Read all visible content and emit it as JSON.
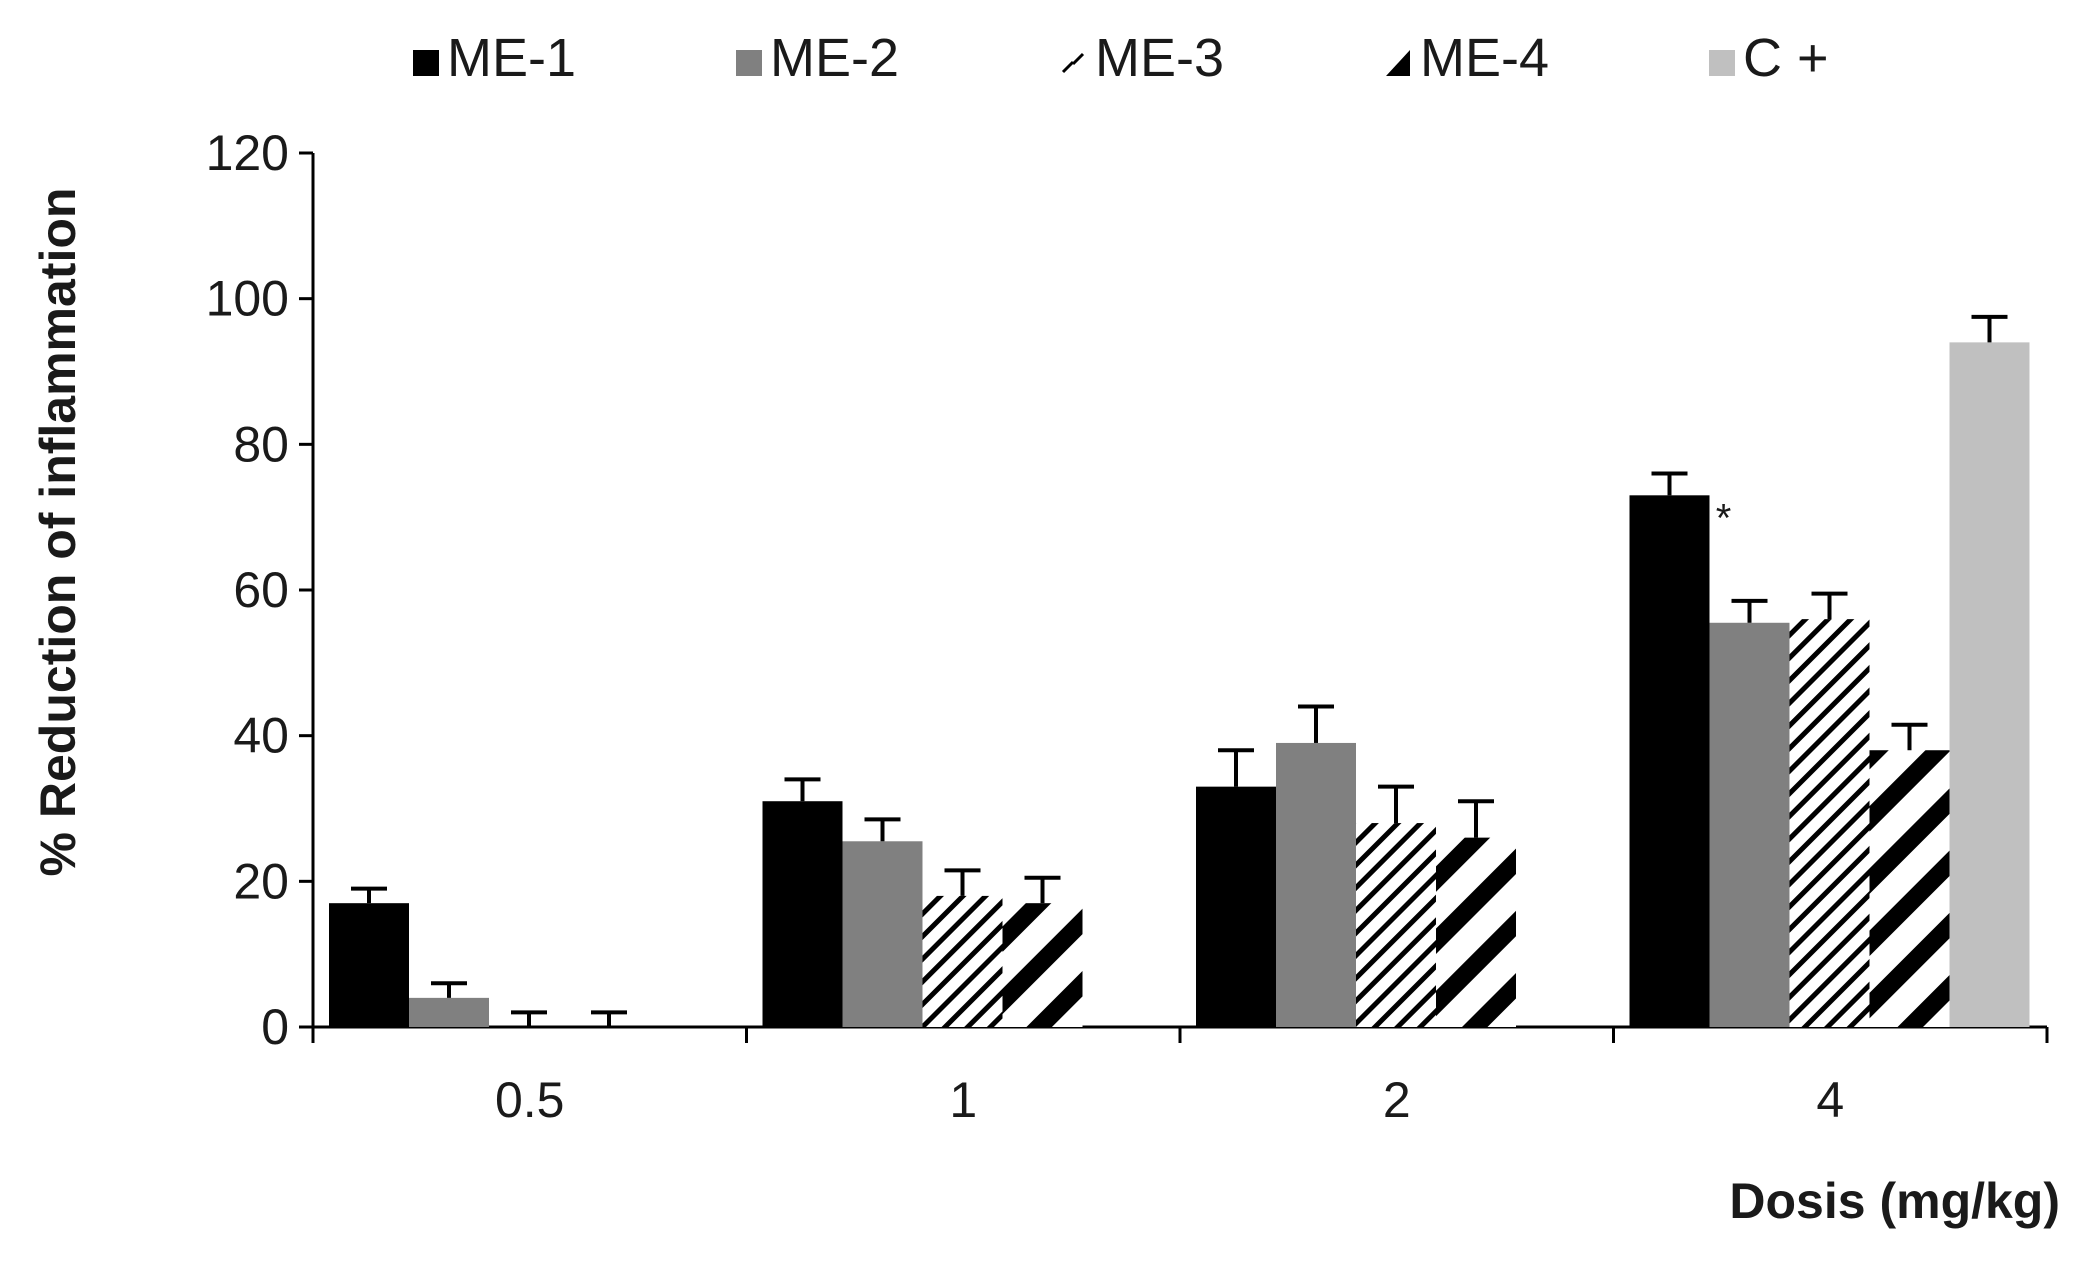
{
  "chart_data": {
    "type": "bar",
    "title": "",
    "xlabel": "Dosis (mg/kg)",
    "ylabel": "% Reduction of inflammation",
    "ylim": [
      0,
      120
    ],
    "yticks": [
      0,
      20,
      40,
      60,
      80,
      100,
      120
    ],
    "categories": [
      "0.5",
      "1",
      "2",
      "4"
    ],
    "legend_position": "top",
    "series": [
      {
        "name": "ME-1",
        "style": "solid",
        "color": "#000000",
        "values": [
          17,
          31,
          33,
          73
        ],
        "errors": [
          2,
          3,
          5,
          3
        ]
      },
      {
        "name": "ME-2",
        "style": "solid",
        "color": "#808080",
        "values": [
          4,
          25.5,
          39,
          55.5
        ],
        "errors": [
          2,
          3,
          5,
          3
        ]
      },
      {
        "name": "ME-3",
        "style": "light-diagonal-hatch",
        "color": "#000000",
        "values": [
          0,
          18,
          28,
          56
        ],
        "errors": [
          2,
          3.5,
          5,
          3.5
        ]
      },
      {
        "name": "ME-4",
        "style": "bold-diagonal-stripes",
        "color": "#000000",
        "values": [
          0,
          17,
          26,
          38
        ],
        "errors": [
          2,
          3.5,
          5,
          3.5
        ]
      },
      {
        "name": "C +",
        "style": "solid",
        "color": "#c0c0c0",
        "values": [
          null,
          null,
          null,
          94
        ],
        "errors": [
          null,
          null,
          null,
          3.5
        ]
      }
    ],
    "annotations": [
      {
        "text": "*",
        "category": "4",
        "series": "ME-1"
      }
    ],
    "grid": false
  }
}
